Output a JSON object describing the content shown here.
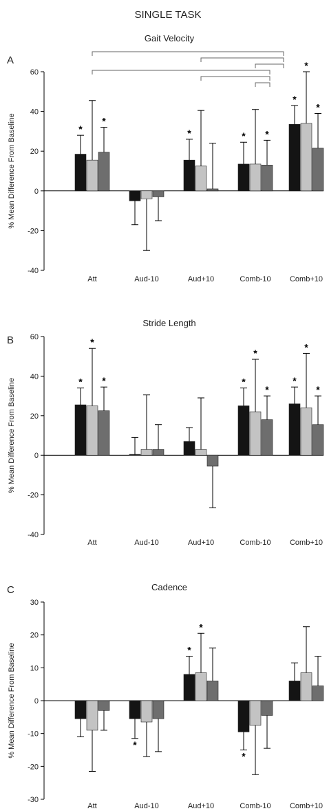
{
  "title": "SINGLE TASK",
  "chart_data": [
    {
      "type": "bar",
      "panel_label": "A",
      "title": "Gait Velocity",
      "ylabel": "% Mean Difference From Baseline",
      "ylim": [
        -40,
        60
      ],
      "yticks": [
        60,
        40,
        20,
        0,
        -20,
        -40
      ],
      "categories": [
        "Att",
        "Aud-10",
        "Aud+10",
        "Comb-10",
        "Comb+10"
      ],
      "series": [
        {
          "color": "#141414",
          "values": [
            18.5,
            -5,
            15.5,
            13.5,
            33.5
          ],
          "error": [
            9.5,
            12,
            10.5,
            11,
            9.5
          ],
          "error_direction": [
            1,
            -1,
            1,
            1,
            1
          ]
        },
        {
          "color": "#c3c3c3",
          "values": [
            15.5,
            -4,
            12.5,
            13.5,
            34
          ],
          "error": [
            30,
            26,
            28,
            27.5,
            26
          ],
          "error_direction": [
            1,
            -1,
            1,
            1,
            1
          ]
        },
        {
          "color": "#6e6e6e",
          "values": [
            19.5,
            -3,
            1,
            13,
            21.5
          ],
          "error": [
            12.5,
            12,
            23,
            12.5,
            17.5
          ],
          "error_direction": [
            1,
            -1,
            1,
            1,
            1
          ]
        }
      ],
      "significance": [
        [
          0,
          0
        ],
        [
          0,
          2
        ],
        [
          2,
          0
        ],
        [
          3,
          0
        ],
        [
          3,
          2
        ],
        [
          4,
          0
        ],
        [
          4,
          1
        ],
        [
          4,
          2
        ]
      ],
      "brackets": [
        {
          "from": 0,
          "to": 4,
          "row": 0
        },
        {
          "from": 2,
          "to": 4,
          "row": 1
        },
        {
          "from": 3,
          "to": 4,
          "row": 2
        },
        {
          "from": 0,
          "to": 4,
          "row": 3
        },
        {
          "from": 2,
          "to": 4,
          "row": 4
        },
        {
          "from": 3,
          "to": 4,
          "row": 5
        }
      ]
    },
    {
      "type": "bar",
      "panel_label": "B",
      "title": "Stride Length",
      "ylabel": "% Mean Difference From Baseline",
      "ylim": [
        -40,
        60
      ],
      "yticks": [
        60,
        40,
        20,
        0,
        -20,
        -40
      ],
      "categories": [
        "Att",
        "Aud-10",
        "Aud+10",
        "Comb-10",
        "Comb+10"
      ],
      "series": [
        {
          "color": "#141414",
          "values": [
            25.5,
            0.5,
            7,
            25,
            26
          ],
          "error": [
            8.5,
            8.5,
            7,
            9,
            8.5
          ],
          "error_direction": [
            1,
            1,
            1,
            1,
            1
          ]
        },
        {
          "color": "#c3c3c3",
          "values": [
            25,
            3,
            3,
            22,
            24
          ],
          "error": [
            29,
            27.5,
            26,
            26.5,
            27.5
          ],
          "error_direction": [
            1,
            1,
            1,
            1,
            1
          ]
        },
        {
          "color": "#6e6e6e",
          "values": [
            22.5,
            3,
            -5.5,
            18,
            15.5
          ],
          "error": [
            12,
            12.5,
            21,
            12,
            14.5
          ],
          "error_direction": [
            1,
            1,
            -1,
            1,
            1
          ]
        }
      ],
      "significance": [
        [
          0,
          0
        ],
        [
          0,
          1
        ],
        [
          0,
          2
        ],
        [
          3,
          0
        ],
        [
          3,
          1
        ],
        [
          3,
          2
        ],
        [
          4,
          0
        ],
        [
          4,
          1
        ],
        [
          4,
          2
        ]
      ],
      "brackets": []
    },
    {
      "type": "bar",
      "panel_label": "C",
      "title": "Cadence",
      "ylabel": "% Mean Difference From Baseline",
      "ylim": [
        -30,
        30
      ],
      "yticks": [
        30,
        20,
        10,
        0,
        -10,
        -20,
        -30
      ],
      "categories": [
        "Att",
        "Aud-10",
        "Aud+10",
        "Comb-10",
        "Comb+10"
      ],
      "series": [
        {
          "color": "#141414",
          "values": [
            -5.5,
            -5.5,
            8,
            -9.5,
            6
          ],
          "error": [
            5.5,
            6,
            5.5,
            5.5,
            5.5
          ],
          "error_direction": [
            -1,
            -1,
            1,
            -1,
            1
          ]
        },
        {
          "color": "#c3c3c3",
          "values": [
            -9,
            -6.5,
            8.5,
            -7.5,
            8.5
          ],
          "error": [
            12.5,
            10.5,
            12,
            15,
            14
          ],
          "error_direction": [
            -1,
            -1,
            1,
            -1,
            1
          ]
        },
        {
          "color": "#6e6e6e",
          "values": [
            -3,
            -5.5,
            6,
            -4.5,
            4.5
          ],
          "error": [
            6,
            10,
            10,
            10,
            9
          ],
          "error_direction": [
            -1,
            -1,
            1,
            -1,
            1
          ]
        }
      ],
      "significance": [
        [
          1,
          0
        ],
        [
          2,
          0
        ],
        [
          2,
          1
        ],
        [
          3,
          0
        ]
      ],
      "brackets": []
    }
  ]
}
